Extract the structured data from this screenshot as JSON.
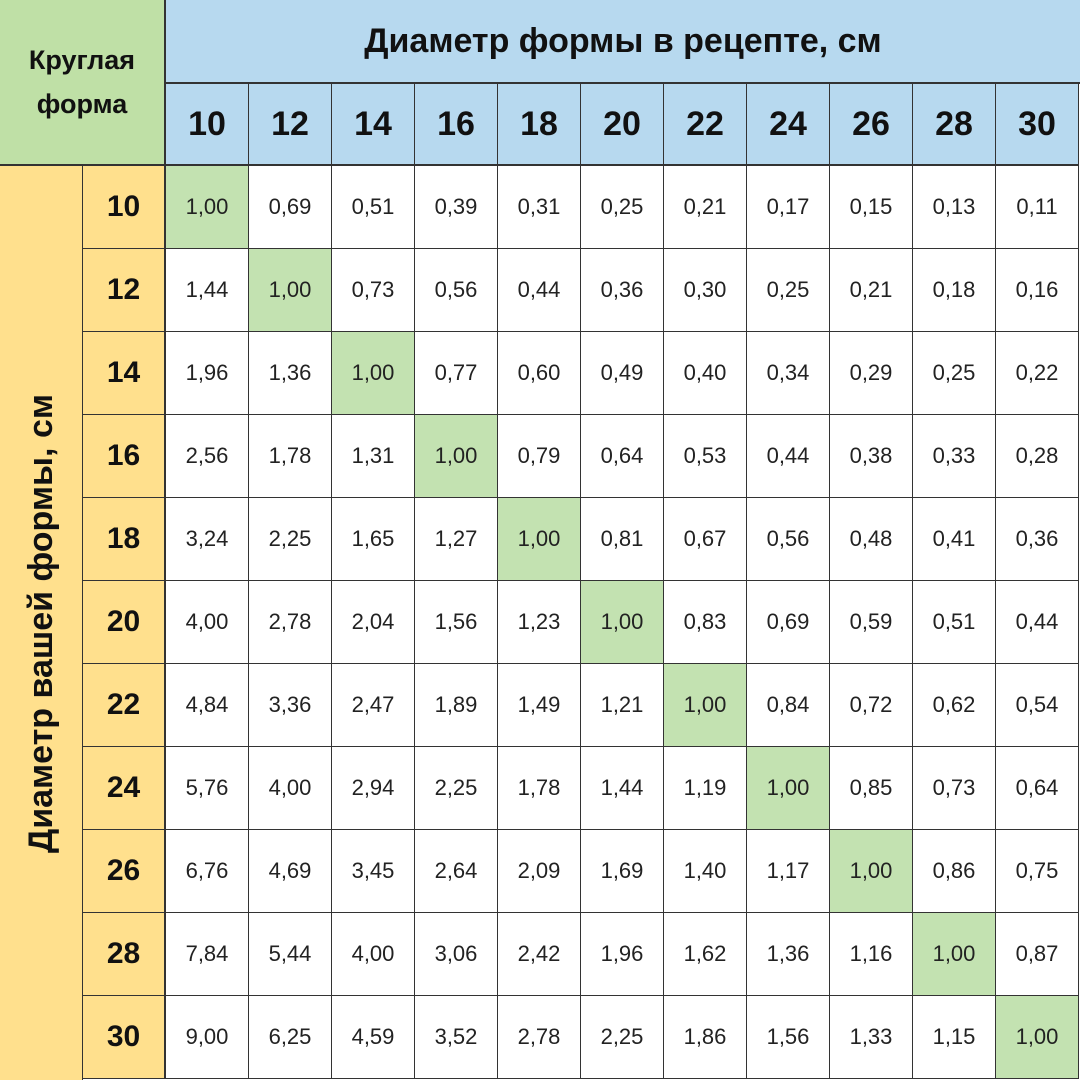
{
  "corner_label": [
    "Круглая",
    "форма"
  ],
  "column_title": "Диаметр формы в рецепте, см",
  "row_title": "Диаметр вашей формы, см",
  "columns": [
    "10",
    "12",
    "14",
    "16",
    "18",
    "20",
    "22",
    "24",
    "26",
    "28",
    "30"
  ],
  "rows": [
    {
      "label": "10",
      "values": [
        "1,00",
        "0,69",
        "0,51",
        "0,39",
        "0,31",
        "0,25",
        "0,21",
        "0,17",
        "0,15",
        "0,13",
        "0,11"
      ]
    },
    {
      "label": "12",
      "values": [
        "1,44",
        "1,00",
        "0,73",
        "0,56",
        "0,44",
        "0,36",
        "0,30",
        "0,25",
        "0,21",
        "0,18",
        "0,16"
      ]
    },
    {
      "label": "14",
      "values": [
        "1,96",
        "1,36",
        "1,00",
        "0,77",
        "0,60",
        "0,49",
        "0,40",
        "0,34",
        "0,29",
        "0,25",
        "0,22"
      ]
    },
    {
      "label": "16",
      "values": [
        "2,56",
        "1,78",
        "1,31",
        "1,00",
        "0,79",
        "0,64",
        "0,53",
        "0,44",
        "0,38",
        "0,33",
        "0,28"
      ]
    },
    {
      "label": "18",
      "values": [
        "3,24",
        "2,25",
        "1,65",
        "1,27",
        "1,00",
        "0,81",
        "0,67",
        "0,56",
        "0,48",
        "0,41",
        "0,36"
      ]
    },
    {
      "label": "20",
      "values": [
        "4,00",
        "2,78",
        "2,04",
        "1,56",
        "1,23",
        "1,00",
        "0,83",
        "0,69",
        "0,59",
        "0,51",
        "0,44"
      ]
    },
    {
      "label": "22",
      "values": [
        "4,84",
        "3,36",
        "2,47",
        "1,89",
        "1,49",
        "1,21",
        "1,00",
        "0,84",
        "0,72",
        "0,62",
        "0,54"
      ]
    },
    {
      "label": "24",
      "values": [
        "5,76",
        "4,00",
        "2,94",
        "2,25",
        "1,78",
        "1,44",
        "1,19",
        "1,00",
        "0,85",
        "0,73",
        "0,64"
      ]
    },
    {
      "label": "26",
      "values": [
        "6,76",
        "4,69",
        "3,45",
        "2,64",
        "2,09",
        "1,69",
        "1,40",
        "1,17",
        "1,00",
        "0,86",
        "0,75"
      ]
    },
    {
      "label": "28",
      "values": [
        "7,84",
        "5,44",
        "4,00",
        "3,06",
        "2,42",
        "1,96",
        "1,62",
        "1,36",
        "1,16",
        "1,00",
        "0,87"
      ]
    },
    {
      "label": "30",
      "values": [
        "9,00",
        "6,25",
        "4,59",
        "3,52",
        "2,78",
        "2,25",
        "1,86",
        "1,56",
        "1,33",
        "1,15",
        "1,00"
      ]
    }
  ],
  "colors": {
    "header_blue": "#b7d9ef",
    "header_yellow": "#ffe08d",
    "corner_green": "#bfe0a6",
    "diagonal_green": "#c3e2b1"
  }
}
